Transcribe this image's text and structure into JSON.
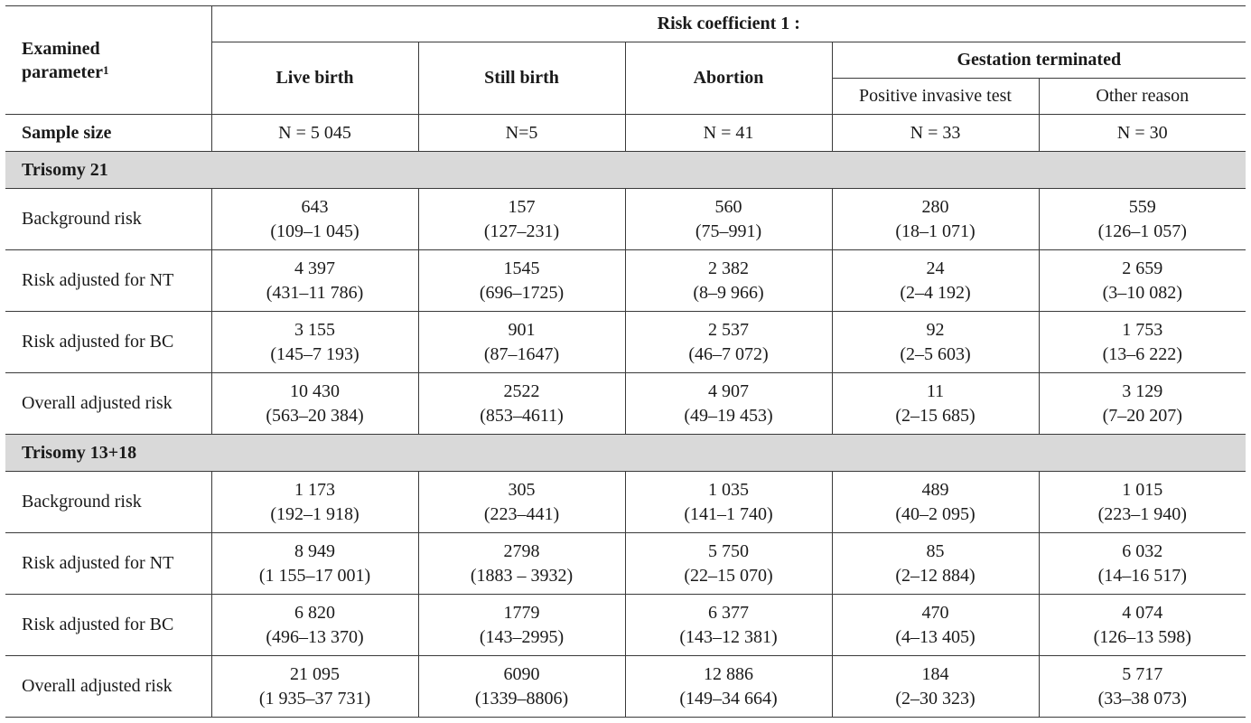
{
  "header": {
    "param": "Examined",
    "param2": "parameter",
    "param_sup": "1",
    "risk_coef": "Risk coefficient 1 :",
    "live_birth": "Live birth",
    "still_birth": "Still birth",
    "abortion": "Abortion",
    "gestation": "Gestation terminated",
    "positive": "Positive invasive test",
    "other": "Other reason"
  },
  "sample": {
    "label": "Sample size",
    "values": [
      "N = 5 045",
      "N=5",
      "N = 41",
      "N = 33",
      "N = 30"
    ]
  },
  "sections": [
    {
      "title": "Trisomy 21",
      "rows": [
        {
          "label": "Background risk",
          "cells": [
            [
              "643",
              "(109–1 045)"
            ],
            [
              "157",
              "(127–231)"
            ],
            [
              "560",
              "(75–991)"
            ],
            [
              "280",
              "(18–1 071)"
            ],
            [
              "559",
              "(126–1 057)"
            ]
          ]
        },
        {
          "label": "Risk adjusted for NT",
          "cells": [
            [
              "4 397",
              "(431–11 786)"
            ],
            [
              "1545",
              "(696–1725)"
            ],
            [
              "2 382",
              "(8–9 966)"
            ],
            [
              "24",
              "(2–4 192)"
            ],
            [
              "2 659",
              "(3–10 082)"
            ]
          ]
        },
        {
          "label": "Risk adjusted for BC",
          "cells": [
            [
              "3 155",
              "(145–7 193)"
            ],
            [
              "901",
              "(87–1647)"
            ],
            [
              "2 537",
              "(46–7 072)"
            ],
            [
              "92",
              "(2–5 603)"
            ],
            [
              "1 753",
              "(13–6 222)"
            ]
          ]
        },
        {
          "label": "Overall adjusted risk",
          "cells": [
            [
              "10 430",
              "(563–20 384)"
            ],
            [
              "2522",
              "(853–4611)"
            ],
            [
              "4 907",
              "(49–19 453)"
            ],
            [
              "11",
              "(2–15 685)"
            ],
            [
              "3 129",
              "(7–20 207)"
            ]
          ]
        }
      ]
    },
    {
      "title": "Trisomy 13+18",
      "rows": [
        {
          "label": "Background risk",
          "cells": [
            [
              "1 173",
              "(192–1 918)"
            ],
            [
              "305",
              "(223–441)"
            ],
            [
              "1 035",
              "(141–1 740)"
            ],
            [
              "489",
              "(40–2 095)"
            ],
            [
              "1 015",
              "(223–1 940)"
            ]
          ]
        },
        {
          "label": "Risk adjusted for NT",
          "cells": [
            [
              "8 949",
              "(1 155–17 001)"
            ],
            [
              "2798",
              "(1883 – 3932)"
            ],
            [
              "5 750",
              "(22–15 070)"
            ],
            [
              "85",
              "(2–12 884)"
            ],
            [
              "6 032",
              "(14–16 517)"
            ]
          ]
        },
        {
          "label": "Risk adjusted for BC",
          "cells": [
            [
              "6 820",
              "(496–13 370)"
            ],
            [
              "1779",
              "(143–2995)"
            ],
            [
              "6 377",
              "(143–12 381)"
            ],
            [
              "470",
              "(4–13 405)"
            ],
            [
              "4 074",
              "(126–13 598)"
            ]
          ]
        },
        {
          "label": "Overall adjusted risk",
          "cells": [
            [
              "21 095",
              "(1 935–37 731)"
            ],
            [
              "6090",
              "(1339–8806)"
            ],
            [
              "12 886",
              "(149–34 664)"
            ],
            [
              "184",
              "(2–30 323)"
            ],
            [
              "5 717",
              "(33–38 073)"
            ]
          ]
        }
      ]
    }
  ]
}
